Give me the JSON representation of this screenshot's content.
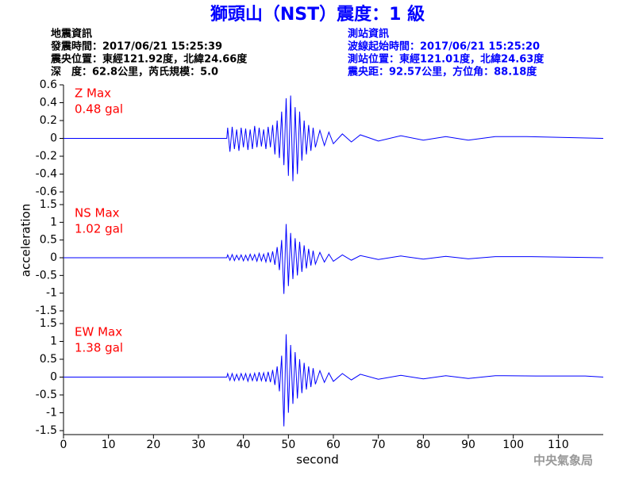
{
  "header": {
    "title": "獅頭山（NST）震度：1 級",
    "left": [
      "地震資訊",
      "發震時間：2017/06/21 15:25:39",
      "震央位置：東經121.92度，北緯24.66度",
      "深　度：62.8公里，芮氏規模：5.0"
    ],
    "right": [
      "測站資訊",
      "波線起始時間：2017/06/21 15:25:20",
      "測站位置：東經121.01度，北緯24.63度",
      "震央距：92.57公里，方位角：88.18度"
    ]
  },
  "ylabel": "acceleration",
  "agency": "中央氣象局",
  "chart_data": [
    {
      "type": "line",
      "color": "#0000ff",
      "annotation": [
        "Z Max",
        "0.48 gal"
      ],
      "xlim": [
        0,
        120
      ],
      "ylim": [
        -0.6,
        0.6
      ],
      "yticks": [
        0.6,
        0.4,
        0.2,
        0,
        -0.2,
        -0.4,
        -0.6
      ],
      "x": [
        0,
        36.3,
        36.5,
        37,
        37.5,
        38,
        38.5,
        39,
        39.5,
        40,
        40.5,
        41,
        41.5,
        42,
        42.5,
        43,
        43.5,
        44,
        44.5,
        45,
        45.5,
        46,
        46.5,
        47,
        47.5,
        48,
        48.5,
        49,
        49.5,
        50,
        50.5,
        51,
        51.5,
        52,
        52.5,
        53,
        53.5,
        54,
        54.5,
        55,
        55.5,
        56,
        57,
        58,
        59,
        60,
        62,
        64,
        66,
        70,
        75,
        80,
        85,
        90,
        96,
        103,
        120
      ],
      "values": [
        0,
        0,
        0.12,
        -0.15,
        0.13,
        -0.12,
        0.1,
        -0.14,
        0.12,
        -0.1,
        0.11,
        -0.13,
        0.1,
        -0.12,
        0.14,
        -0.1,
        0.12,
        -0.09,
        0.1,
        -0.12,
        0.13,
        -0.1,
        0.15,
        -0.18,
        0.2,
        -0.22,
        0.3,
        -0.3,
        0.45,
        -0.42,
        0.48,
        -0.48,
        0.35,
        -0.4,
        0.3,
        -0.25,
        0.2,
        -0.18,
        0.15,
        -0.14,
        0.12,
        -0.1,
        0.09,
        -0.08,
        0.07,
        -0.06,
        0.05,
        -0.04,
        0.04,
        -0.03,
        0.03,
        -0.02,
        0.02,
        -0.02,
        0.02,
        0.02,
        0
      ]
    },
    {
      "type": "line",
      "color": "#0000ff",
      "annotation": [
        "NS Max",
        "1.02 gal"
      ],
      "xlim": [
        0,
        120
      ],
      "ylim": [
        -1.5,
        1.5
      ],
      "yticks": [
        1.5,
        1,
        0.5,
        0,
        -0.5,
        -1,
        -1.5
      ],
      "x": [
        0,
        36.3,
        36.5,
        37,
        37.5,
        38,
        38.5,
        39,
        39.5,
        40,
        40.5,
        41,
        41.5,
        42,
        42.5,
        43,
        43.5,
        44,
        44.5,
        45,
        45.5,
        46,
        46.5,
        47,
        47.5,
        48,
        48.5,
        49,
        49.5,
        50,
        50.5,
        51,
        51.5,
        52,
        52.5,
        53,
        53.5,
        54,
        54.5,
        55,
        55.5,
        56,
        57,
        58,
        59,
        60,
        62,
        64,
        66,
        70,
        75,
        80,
        85,
        90,
        96,
        104,
        120
      ],
      "values": [
        0,
        0,
        0.08,
        -0.07,
        0.09,
        -0.08,
        0.07,
        -0.06,
        0.08,
        -0.09,
        0.07,
        -0.08,
        0.1,
        -0.07,
        0.09,
        -0.1,
        0.12,
        -0.09,
        0.1,
        -0.12,
        0.15,
        -0.13,
        0.18,
        -0.2,
        0.3,
        -0.35,
        0.5,
        -1.02,
        0.95,
        -0.8,
        0.7,
        -0.6,
        0.55,
        -0.5,
        0.45,
        -0.4,
        0.35,
        -0.3,
        0.25,
        -0.22,
        0.2,
        -0.18,
        0.15,
        -0.12,
        0.1,
        -0.1,
        0.08,
        -0.07,
        0.06,
        -0.05,
        0.05,
        -0.04,
        0.04,
        -0.03,
        0.03,
        0.03,
        0
      ]
    },
    {
      "type": "line",
      "color": "#0000ff",
      "annotation": [
        "EW Max",
        "1.38 gal"
      ],
      "xlim": [
        0,
        120
      ],
      "ylim": [
        -1.5,
        1.5
      ],
      "yticks": [
        1.5,
        1,
        0.5,
        0,
        -0.5,
        -1,
        -1.5
      ],
      "xticks": [
        0,
        10,
        20,
        30,
        40,
        50,
        60,
        70,
        80,
        90,
        100,
        110
      ],
      "xlabel": "second",
      "x": [
        0,
        36.3,
        36.5,
        37,
        37.5,
        38,
        38.5,
        39,
        39.5,
        40,
        40.5,
        41,
        41.5,
        42,
        42.5,
        43,
        43.5,
        44,
        44.5,
        45,
        45.5,
        46,
        46.5,
        47,
        47.5,
        48,
        48.5,
        49,
        49.5,
        50,
        50.5,
        51,
        51.5,
        52,
        52.5,
        53,
        53.5,
        54,
        54.5,
        55,
        55.5,
        56,
        57,
        58,
        59,
        60,
        62,
        64,
        66,
        70,
        75,
        80,
        85,
        90,
        96,
        105,
        116,
        120
      ],
      "values": [
        0,
        0,
        0.1,
        -0.09,
        0.1,
        -0.1,
        0.08,
        -0.09,
        0.1,
        -0.08,
        0.1,
        -0.12,
        0.09,
        -0.1,
        0.11,
        -0.12,
        0.14,
        -0.1,
        0.12,
        -0.13,
        0.15,
        -0.14,
        0.2,
        -0.22,
        0.3,
        -0.4,
        0.6,
        -1.38,
        1.2,
        -1.0,
        0.9,
        -0.75,
        0.7,
        -0.6,
        0.5,
        -0.45,
        0.4,
        -0.35,
        0.3,
        -0.28,
        0.25,
        -0.2,
        0.18,
        -0.15,
        0.12,
        -0.12,
        0.1,
        -0.08,
        0.08,
        -0.06,
        0.05,
        -0.05,
        0.04,
        -0.04,
        0.04,
        0.03,
        0.03,
        0
      ]
    }
  ]
}
